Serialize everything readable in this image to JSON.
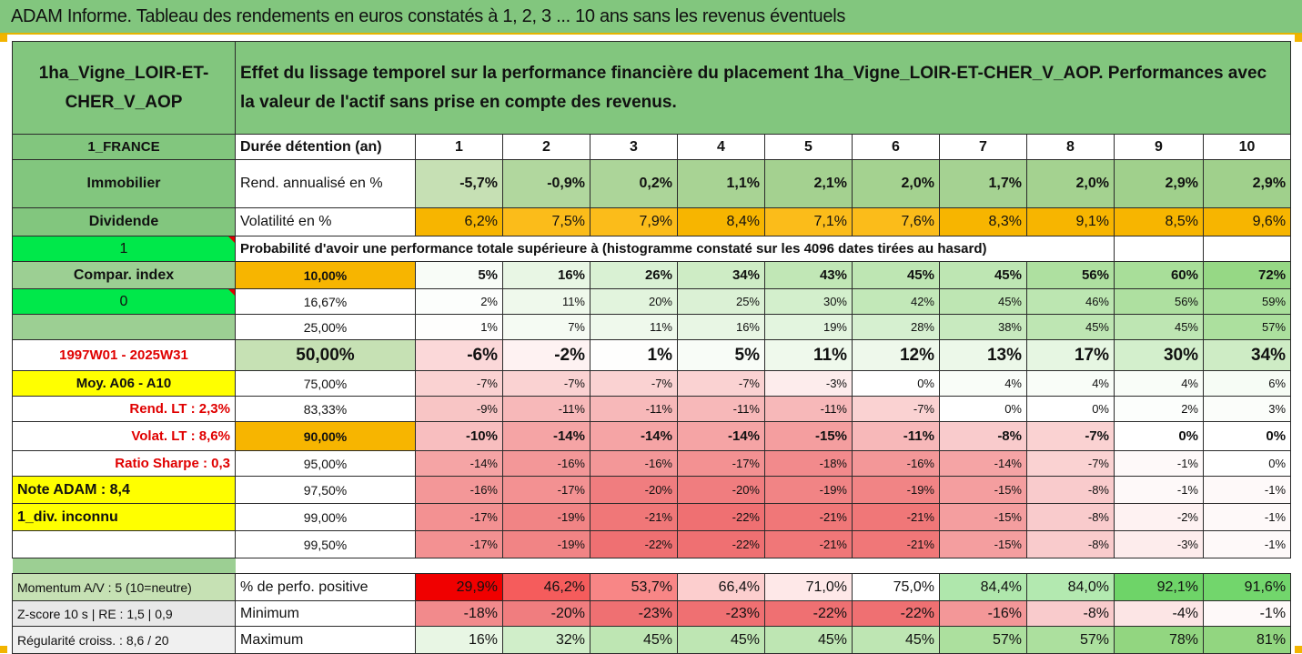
{
  "title": "ADAM Informe. Tableau des rendements en euros constatés à 1, 2, 3 ... 10 ans sans les revenus éventuels",
  "asset_name": "1ha_Vigne_LOIR-ET-CHER_V_AOP",
  "description": "Effet du lissage temporel sur la performance financière du placement 1ha_Vigne_LOIR-ET-CHER_V_AOP. Performances avec la valeur de l'actif sans prise en compte des revenus.",
  "side": {
    "country": "1_FRANCE",
    "category": "Immobilier",
    "dividend_label": "Dividende",
    "dividend_value": "1",
    "compar_index_label": "Compar. index",
    "compar_index_value": "0",
    "period": "1997W01 - 2025W31",
    "moy_label": "Moy. A06 - A10",
    "rend_lt": "Rend. LT :   2,3%",
    "volat_lt": "Volat. LT :  8,6%",
    "ratio_sharpe": "Ratio Sharpe :   0,3",
    "note_adam": "Note ADAM : 8,4",
    "div_status": "1_div. inconnu"
  },
  "headers": {
    "duration": "Durée détention (an)",
    "years": [
      "1",
      "2",
      "3",
      "4",
      "5",
      "6",
      "7",
      "8",
      "9",
      "10"
    ],
    "rend": "Rend. annualisé en %",
    "vol": "Volatilité en %",
    "proba": "Probabilité d'avoir une performance totale supérieure à (histogramme constaté sur les 4096 dates tirées au hasard)"
  },
  "rend_values": [
    "-5,7%",
    "-0,9%",
    "0,2%",
    "1,1%",
    "2,1%",
    "2,0%",
    "1,7%",
    "2,0%",
    "2,9%",
    "2,9%"
  ],
  "vol_values": [
    "6,2%",
    "7,5%",
    "7,9%",
    "8,4%",
    "7,1%",
    "7,6%",
    "8,3%",
    "9,1%",
    "8,5%",
    "9,6%"
  ],
  "prob_rows": [
    {
      "label": "10,00%",
      "values": [
        "5%",
        "16%",
        "26%",
        "34%",
        "43%",
        "45%",
        "45%",
        "56%",
        "60%",
        "72%"
      ]
    },
    {
      "label": "16,67%",
      "values": [
        "2%",
        "11%",
        "20%",
        "25%",
        "30%",
        "42%",
        "45%",
        "46%",
        "56%",
        "59%"
      ]
    },
    {
      "label": "25,00%",
      "values": [
        "1%",
        "7%",
        "11%",
        "16%",
        "19%",
        "28%",
        "38%",
        "45%",
        "45%",
        "57%"
      ]
    },
    {
      "label": "50,00%",
      "values": [
        "-6%",
        "-2%",
        "1%",
        "5%",
        "11%",
        "12%",
        "13%",
        "17%",
        "30%",
        "34%"
      ]
    },
    {
      "label": "75,00%",
      "values": [
        "-7%",
        "-7%",
        "-7%",
        "-7%",
        "-3%",
        "0%",
        "4%",
        "4%",
        "4%",
        "6%"
      ]
    },
    {
      "label": "83,33%",
      "values": [
        "-9%",
        "-11%",
        "-11%",
        "-11%",
        "-11%",
        "-7%",
        "0%",
        "0%",
        "2%",
        "3%"
      ]
    },
    {
      "label": "90,00%",
      "values": [
        "-10%",
        "-14%",
        "-14%",
        "-14%",
        "-15%",
        "-11%",
        "-8%",
        "-7%",
        "0%",
        "0%"
      ]
    },
    {
      "label": "95,00%",
      "values": [
        "-14%",
        "-16%",
        "-16%",
        "-17%",
        "-18%",
        "-16%",
        "-14%",
        "-7%",
        "-1%",
        "0%"
      ]
    },
    {
      "label": "97,50%",
      "values": [
        "-16%",
        "-17%",
        "-20%",
        "-20%",
        "-19%",
        "-19%",
        "-15%",
        "-8%",
        "-1%",
        "-1%"
      ]
    },
    {
      "label": "99,00%",
      "values": [
        "-17%",
        "-19%",
        "-21%",
        "-22%",
        "-21%",
        "-21%",
        "-15%",
        "-8%",
        "-2%",
        "-1%"
      ]
    },
    {
      "label": "99,50%",
      "values": [
        "-17%",
        "-19%",
        "-22%",
        "-22%",
        "-21%",
        "-21%",
        "-15%",
        "-8%",
        "-3%",
        "-1%"
      ]
    }
  ],
  "bottom": [
    {
      "left": "Momentum A/V : 5 (10=neutre)",
      "label": "% de perfo. positive",
      "values": [
        "29,9%",
        "46,2%",
        "53,7%",
        "66,4%",
        "71,0%",
        "75,0%",
        "84,4%",
        "84,0%",
        "92,1%",
        "91,6%"
      ]
    },
    {
      "left": "Z-score 10 s  |  RE : 1,5  |  0,9",
      "label": "Minimum",
      "values": [
        "-18%",
        "-20%",
        "-23%",
        "-23%",
        "-22%",
        "-22%",
        "-16%",
        "-8%",
        "-4%",
        "-1%"
      ]
    },
    {
      "left": "Régularité croiss. : 8,6 / 20",
      "label": "Maximum",
      "values": [
        "16%",
        "32%",
        "45%",
        "45%",
        "45%",
        "45%",
        "57%",
        "57%",
        "78%",
        "81%"
      ]
    }
  ],
  "colors": {
    "header_green": "#82c67e",
    "orange": "#f7b500",
    "yellow": "#ffff00",
    "bright_green": "#00e84a",
    "red_text": "#e00000"
  }
}
